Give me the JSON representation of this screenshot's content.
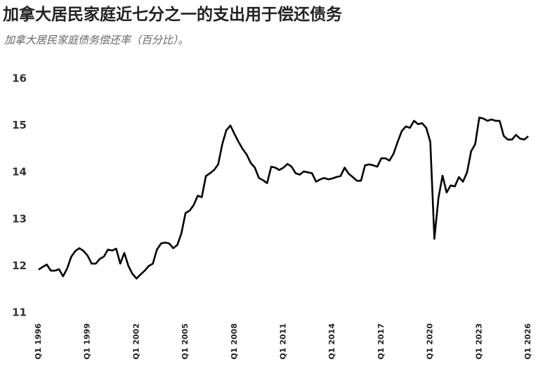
{
  "chart_data": {
    "type": "line",
    "title": "加拿大居民家庭近七分之一的支出用于偿还债务",
    "subtitle": "加拿大居民家庭债务偿还率（百分比）。",
    "categories": [
      "Q1 1996",
      null,
      null,
      null,
      null,
      null,
      null,
      null,
      null,
      null,
      null,
      null,
      "Q1 1999",
      null,
      null,
      null,
      null,
      null,
      null,
      null,
      null,
      null,
      null,
      null,
      "Q1 2002",
      null,
      null,
      null,
      null,
      null,
      null,
      null,
      null,
      null,
      null,
      null,
      "Q1 2005",
      null,
      null,
      null,
      null,
      null,
      null,
      null,
      null,
      null,
      null,
      null,
      "Q1 2008",
      null,
      null,
      null,
      null,
      null,
      null,
      null,
      null,
      null,
      null,
      null,
      "Q1 2011",
      null,
      null,
      null,
      null,
      null,
      null,
      null,
      null,
      null,
      null,
      null,
      "Q1 2014",
      null,
      null,
      null,
      null,
      null,
      null,
      null,
      null,
      null,
      null,
      null,
      "Q1 2017",
      null,
      null,
      null,
      null,
      null,
      null,
      null,
      null,
      null,
      null,
      null,
      "Q1 2020",
      null,
      null,
      null,
      null,
      null,
      null,
      null,
      null,
      null,
      null,
      null,
      "Q1 2023",
      null,
      null,
      null,
      null,
      null,
      null,
      null,
      null,
      null,
      null,
      null,
      "Q1 2026"
    ],
    "series": [
      {
        "color": "#000000",
        "values": [
          11.92,
          11.98,
          12.03,
          11.9,
          11.9,
          11.93,
          11.78,
          11.95,
          12.2,
          12.32,
          12.38,
          12.32,
          12.22,
          12.05,
          12.05,
          12.15,
          12.2,
          12.35,
          12.33,
          12.37,
          12.05,
          12.28,
          12.0,
          11.83,
          11.73,
          11.82,
          11.9,
          12.0,
          12.05,
          12.35,
          12.48,
          12.5,
          12.48,
          12.38,
          12.45,
          12.7,
          13.13,
          13.18,
          13.3,
          13.5,
          13.47,
          13.92,
          13.98,
          14.05,
          14.17,
          14.6,
          14.9,
          15.0,
          14.82,
          14.65,
          14.5,
          14.38,
          14.2,
          14.1,
          13.88,
          13.83,
          13.77,
          14.12,
          14.1,
          14.05,
          14.1,
          14.18,
          14.12,
          13.98,
          13.95,
          14.02,
          14.0,
          13.98,
          13.8,
          13.85,
          13.88,
          13.85,
          13.87,
          13.9,
          13.92,
          14.1,
          13.97,
          13.9,
          13.82,
          13.82,
          14.15,
          14.17,
          14.15,
          14.12,
          14.3,
          14.3,
          14.25,
          14.4,
          14.65,
          14.88,
          14.98,
          14.95,
          15.1,
          15.03,
          15.05,
          14.95,
          14.65,
          12.58,
          13.45,
          13.93,
          13.57,
          13.72,
          13.7,
          13.9,
          13.8,
          14.0,
          14.45,
          14.6,
          15.17,
          15.15,
          15.1,
          15.13,
          15.1,
          15.1,
          14.78,
          14.7,
          14.7,
          14.8,
          14.72,
          14.7,
          14.77
        ]
      }
    ],
    "ylim": [
      11,
      16
    ],
    "yticks": [
      11,
      12,
      13,
      14,
      15,
      16
    ]
  }
}
